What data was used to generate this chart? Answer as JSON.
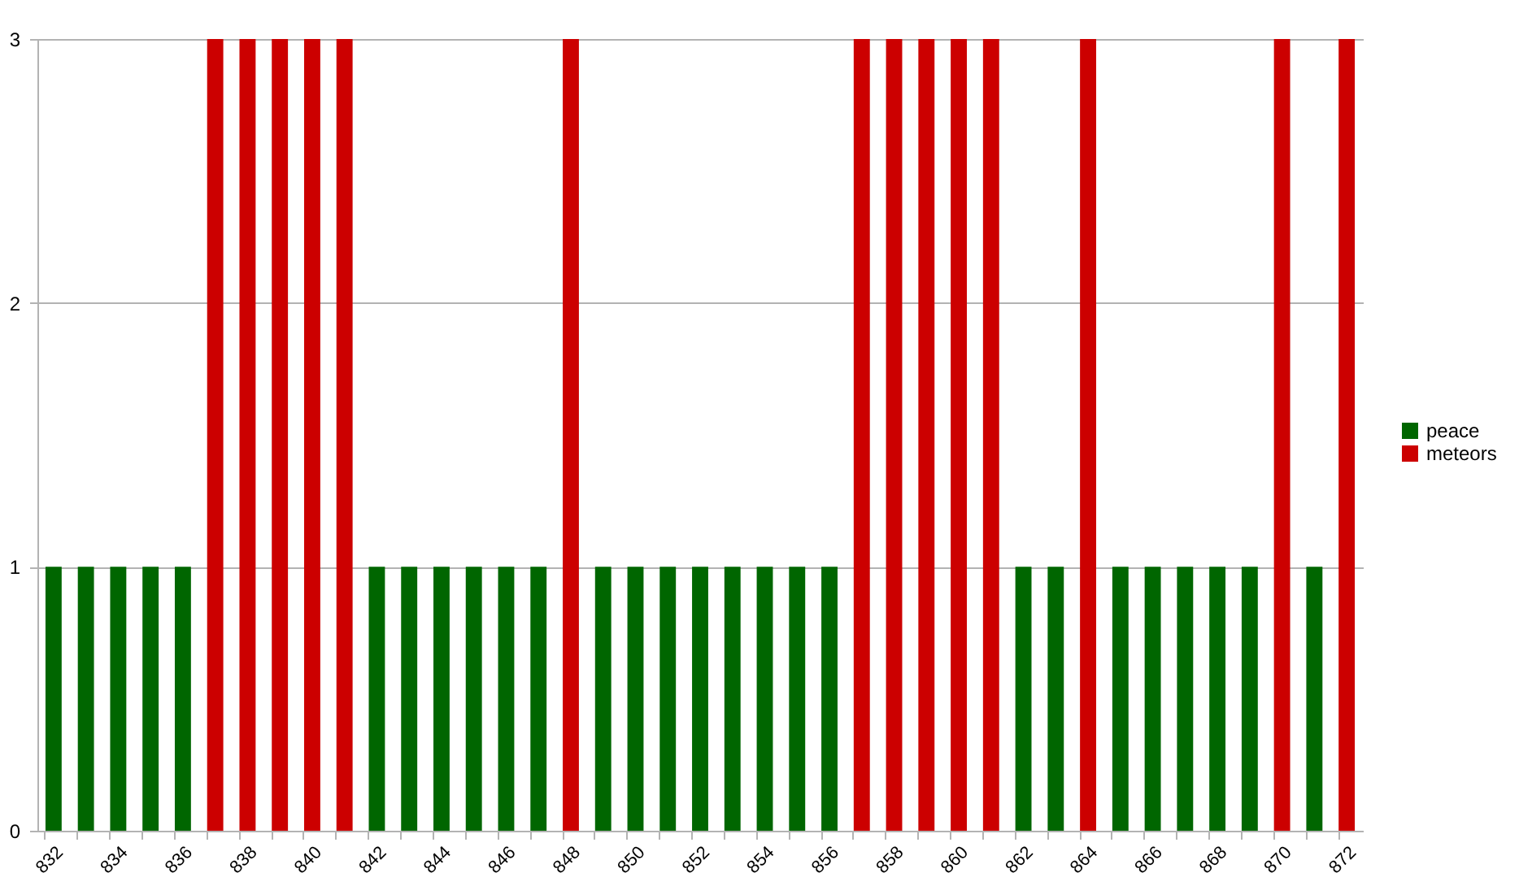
{
  "chart_data": {
    "type": "bar",
    "categories": [
      "832",
      null,
      "834",
      null,
      "836",
      null,
      "838",
      null,
      "840",
      null,
      "842",
      null,
      "844",
      null,
      "846",
      null,
      "848",
      null,
      "850",
      null,
      "852",
      null,
      "854",
      null,
      "856",
      null,
      "858",
      null,
      "860",
      null,
      "862",
      null,
      "864",
      null,
      "866",
      null,
      "868",
      null,
      "870",
      null,
      "872"
    ],
    "series": [
      {
        "name": "peace",
        "color": "#006600",
        "values": [
          1,
          1,
          1,
          1,
          1,
          null,
          null,
          null,
          null,
          null,
          1,
          1,
          1,
          1,
          1,
          1,
          null,
          1,
          1,
          1,
          1,
          1,
          1,
          1,
          1,
          null,
          null,
          null,
          null,
          null,
          1,
          1,
          null,
          1,
          1,
          1,
          1,
          1,
          null,
          1,
          null
        ]
      },
      {
        "name": "meteors",
        "color": "#cc0000",
        "values": [
          null,
          null,
          null,
          null,
          null,
          3,
          3,
          3,
          3,
          3,
          null,
          null,
          null,
          null,
          null,
          null,
          3,
          null,
          null,
          null,
          null,
          null,
          null,
          null,
          null,
          3,
          3,
          3,
          3,
          3,
          null,
          null,
          3,
          null,
          null,
          null,
          null,
          null,
          3,
          null,
          3
        ]
      }
    ],
    "ylim": [
      0,
      3
    ],
    "yticks": [
      0,
      1,
      2,
      3
    ],
    "grid": "y",
    "legend": "right"
  }
}
